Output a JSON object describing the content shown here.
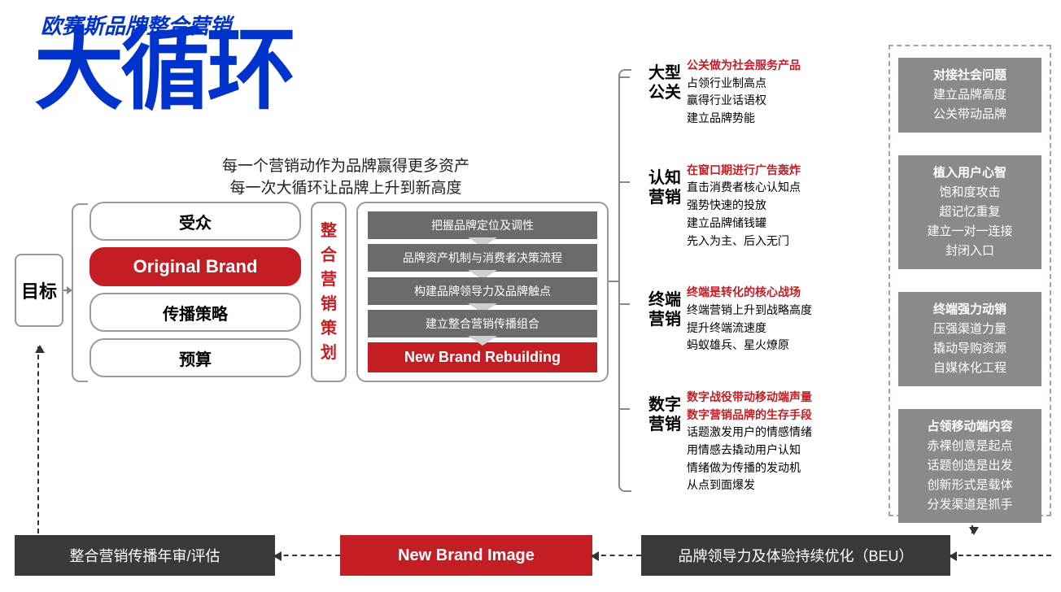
{
  "subtitle": "欧赛斯品牌整合营销",
  "bigtitle": "大循环",
  "tagline1": "每一个营销动作为品牌赢得更多资产",
  "tagline2": "每一次大循环让品牌上升到新高度",
  "goal": "目标",
  "stack": {
    "items": [
      "受众",
      "Original Brand",
      "传播策略",
      "预算"
    ],
    "red_index": 1
  },
  "vertical_label": "整合营销策划",
  "gray_steps": [
    "把握品牌定位及调性",
    "品牌资产机制与消费者决策流程",
    "构建品牌领导力及品牌触点",
    "建立整合营销传播组合"
  ],
  "red_step": "New Brand Rebuilding",
  "branches": [
    {
      "label": "大型公关",
      "red_lines": [
        "公关做为社会服务产品"
      ],
      "lines": [
        "占领行业制高点",
        "赢得行业话语权",
        "建立品牌势能"
      ]
    },
    {
      "label": "认知营销",
      "red_lines": [
        "在窗口期进行广告轰炸"
      ],
      "lines": [
        "直击消费者核心认知点",
        "强势快速的投放",
        "建立品牌储钱罐",
        "先入为主、后入无门"
      ]
    },
    {
      "label": "终端营销",
      "red_lines": [
        "终端是转化的核心战场"
      ],
      "lines": [
        "终端营销上升到战略高度",
        "提升终端流速度",
        "蚂蚁雄兵、星火燎原"
      ]
    },
    {
      "label": "数字营销",
      "red_lines": [
        "数字战役带动移动端声量",
        "数字营销品牌的生存手段"
      ],
      "lines": [
        "话题激发用户的情感情绪",
        "用情感去撬动用户认知",
        "情绪做为传播的发动机",
        "从点到面爆发"
      ]
    }
  ],
  "dashed_boxes": [
    {
      "bold": "对接社会问题",
      "lines": [
        "建立品牌高度",
        "公关带动品牌"
      ]
    },
    {
      "bold": "植入用户心智",
      "lines": [
        "饱和度攻击",
        "超记忆重复",
        "建立一对一连接",
        "封闭入口"
      ]
    },
    {
      "bold": "终端强力动销",
      "lines": [
        "压强渠道力量",
        "撬动导购资源",
        "自媒体化工程"
      ]
    },
    {
      "bold": "占领移动端内容",
      "lines": [
        "赤裸创意是起点",
        "话题创造是出发",
        "创新形式是载体",
        "分发渠道是抓手"
      ]
    }
  ],
  "bottom": {
    "left": "整合营销传播年审/评估",
    "mid": "New Brand Image",
    "right": "品牌领导力及体验持续优化（BEU）"
  },
  "colors": {
    "blue": "#0033cc",
    "red": "#c41e25",
    "gray_box": "#6b6b6b",
    "dark": "#3a3a3a",
    "dashed_border": "#9aa6b8",
    "dashed_fill": "#8a8a8a",
    "border_gray": "#999999"
  }
}
